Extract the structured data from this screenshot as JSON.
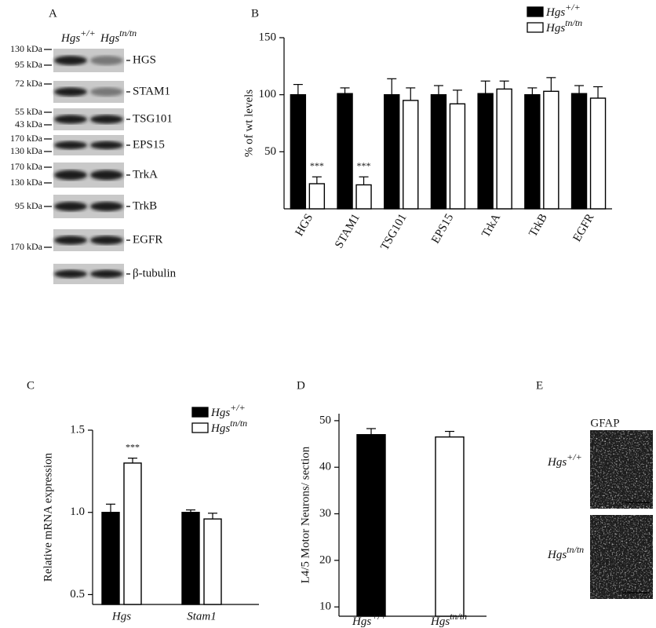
{
  "panel_labels": [
    "A",
    "B",
    "C",
    "D",
    "E"
  ],
  "blot": {
    "lanes": [
      "Hgs+/+",
      "Hgstn/tn"
    ],
    "rows": [
      {
        "protein": "HGS",
        "markers": [
          "130 kDa",
          "95 kDa"
        ]
      },
      {
        "protein": "STAM1",
        "markers": [
          "72 kDa"
        ]
      },
      {
        "protein": "TSG101",
        "markers": [
          "55 kDa",
          "43 kDa"
        ]
      },
      {
        "protein": "EPS15",
        "markers": [
          "170 kDa",
          "130 kDa"
        ]
      },
      {
        "protein": "TrkA",
        "markers": [
          "170 kDa",
          "130 kDa"
        ]
      },
      {
        "protein": "TrkB",
        "markers": [
          "95 kDa"
        ]
      },
      {
        "protein": "EGFR",
        "markers": [
          "170 kDa"
        ]
      },
      {
        "protein": "β-tubulin",
        "markers": []
      }
    ]
  },
  "chart_data": [
    {
      "type": "bar",
      "y_label": "% of wt levels",
      "categories": [
        "HGS",
        "STAM1",
        "TSG101",
        "EPS15",
        "TrkA",
        "TrkB",
        "EGFR"
      ],
      "series": [
        {
          "name": "Hgs+/+",
          "color": "#000000",
          "values": [
            100,
            101,
            100,
            100,
            101,
            100,
            101
          ],
          "errors": [
            9,
            5,
            14,
            8,
            11,
            6,
            7
          ]
        },
        {
          "name": "Hgstn/tn",
          "color": "#ffffff",
          "values": [
            22,
            21,
            95,
            92,
            105,
            103,
            97
          ],
          "errors": [
            6,
            7,
            11,
            12,
            7,
            12,
            10
          ]
        }
      ],
      "ylim": [
        0,
        150
      ],
      "yticks": [
        50,
        100,
        150
      ],
      "legend": "top-right",
      "annotations": [
        {
          "text": "***",
          "category": "HGS",
          "series": "Hgstn/tn"
        },
        {
          "text": "***",
          "category": "STAM1",
          "series": "Hgstn/tn"
        }
      ]
    },
    {
      "type": "bar",
      "y_label": "Relative mRNA expression",
      "categories": [
        "Hgs",
        "Stam1"
      ],
      "series": [
        {
          "name": "Hgs+/+",
          "color": "#000000",
          "values": [
            1.0,
            1.0
          ],
          "errors": [
            0.05,
            0.015
          ]
        },
        {
          "name": "Hgstn/tn",
          "color": "#ffffff",
          "values": [
            1.3,
            0.96
          ],
          "errors": [
            0.03,
            0.035
          ]
        }
      ],
      "ylim": [
        0.44,
        1.5
      ],
      "yticks": [
        0.5,
        {
          "value": 1,
          "label": "1.0"
        },
        1.5
      ],
      "legend": "top-right",
      "annotations": [
        {
          "text": "***",
          "category": "Hgs",
          "series": "Hgstn/tn"
        }
      ]
    },
    {
      "type": "bar",
      "y_label": "L4/5 Motor Neurons/ section",
      "categories": [
        "Hgs+/+",
        "Hgstn/tn"
      ],
      "values": [
        47,
        46.5
      ],
      "errors": [
        1.3,
        1.2
      ],
      "colors": [
        "#000000",
        "#ffffff"
      ],
      "ylim": [
        8,
        51.5
      ],
      "yticks": [
        10,
        20,
        30,
        40,
        50
      ]
    }
  ],
  "micrograph": {
    "stain": "GFAP",
    "rows": [
      "Hgs+/+",
      "Hgstn/tn"
    ]
  }
}
